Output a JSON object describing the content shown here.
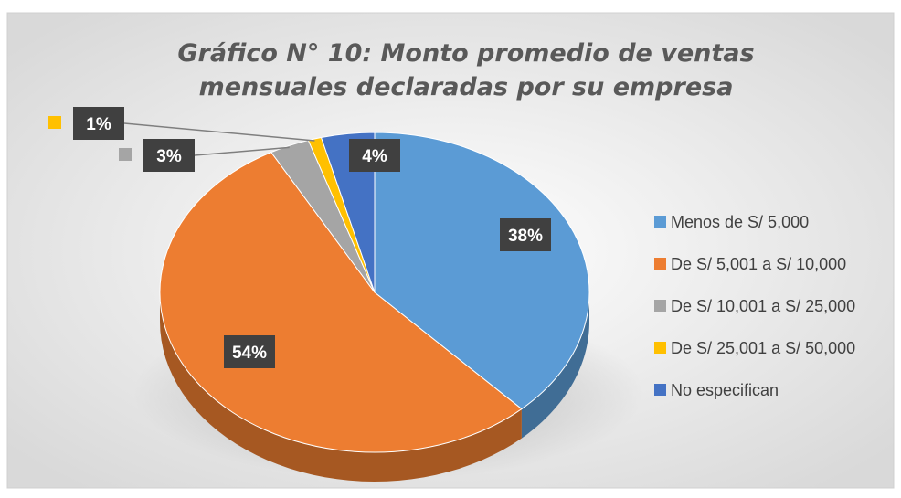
{
  "chart_data": {
    "type": "pie",
    "title": "Gráfico N° 10: Monto promedio de ventas mensuales declaradas por su empresa",
    "categories": [
      "Menos de S/ 5,000",
      "De S/ 5,001 a S/ 10,000",
      "De S/ 10,001 a S/ 25,000",
      "De S/ 25,001 a S/ 50,000",
      "No especifican"
    ],
    "values": [
      38,
      54,
      3,
      1,
      4
    ],
    "value_labels": [
      "38%",
      "54%",
      "3%",
      "1%",
      "4%"
    ],
    "colors": [
      "#5b9bd5",
      "#ed7d31",
      "#a5a5a5",
      "#ffc000",
      "#4472c4"
    ],
    "legend": "right"
  }
}
